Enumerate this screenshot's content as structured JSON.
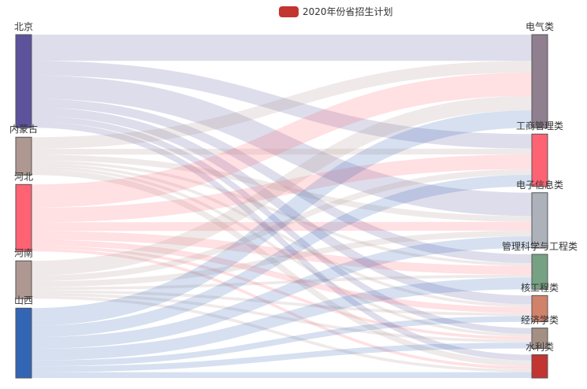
{
  "legend": {
    "label": "2020年份省招生计划",
    "color": "#c23531"
  },
  "chart_data": {
    "type": "sankey",
    "series_name": "2020年份省招生计划",
    "sources": [
      {
        "name": "北京",
        "color": "#5c539c"
      },
      {
        "name": "内蒙古",
        "color": "#ae9891"
      },
      {
        "name": "河北",
        "color": "#fe6373"
      },
      {
        "name": "河南",
        "color": "#ae9891"
      },
      {
        "name": "山西",
        "color": "#3365b5"
      }
    ],
    "targets": [
      {
        "name": "电气类",
        "color": "#907f8f"
      },
      {
        "name": "工商管理类",
        "color": "#fe6373"
      },
      {
        "name": "电子信息类",
        "color": "#adb1ba"
      },
      {
        "name": "管理科学与工程类",
        "color": "#76a183"
      },
      {
        "name": "核工程类",
        "color": "#d1826a"
      },
      {
        "name": "经济学类",
        "color": "#a38f84"
      },
      {
        "name": "水利类",
        "color": "#c23531"
      }
    ],
    "links": [
      {
        "source": "北京",
        "target": "电气类",
        "value": 9
      },
      {
        "source": "北京",
        "target": "工商管理类",
        "value": 5
      },
      {
        "source": "北京",
        "target": "电子信息类",
        "value": 8
      },
      {
        "source": "北京",
        "target": "管理科学与工程类",
        "value": 3
      },
      {
        "source": "北京",
        "target": "核工程类",
        "value": 3
      },
      {
        "source": "北京",
        "target": "经济学类",
        "value": 2
      },
      {
        "source": "北京",
        "target": "水利类",
        "value": 2
      },
      {
        "source": "内蒙古",
        "target": "电气类",
        "value": 4
      },
      {
        "source": "内蒙古",
        "target": "工商管理类",
        "value": 2
      },
      {
        "source": "内蒙古",
        "target": "电子信息类",
        "value": 2
      },
      {
        "source": "内蒙古",
        "target": "管理科学与工程类",
        "value": 1
      },
      {
        "source": "内蒙古",
        "target": "核工程类",
        "value": 1
      },
      {
        "source": "内蒙古",
        "target": "经济学类",
        "value": 1
      },
      {
        "source": "内蒙古",
        "target": "水利类",
        "value": 2
      },
      {
        "source": "河北",
        "target": "电气类",
        "value": 8
      },
      {
        "source": "河北",
        "target": "工商管理类",
        "value": 5
      },
      {
        "source": "河北",
        "target": "电子信息类",
        "value": 3
      },
      {
        "source": "河北",
        "target": "管理科学与工程类",
        "value": 3
      },
      {
        "source": "河北",
        "target": "核工程类",
        "value": 2
      },
      {
        "source": "河北",
        "target": "经济学类",
        "value": 1
      },
      {
        "source": "河北",
        "target": "水利类",
        "value": 1
      },
      {
        "source": "河南",
        "target": "电气类",
        "value": 5
      },
      {
        "source": "河南",
        "target": "工商管理类",
        "value": 2
      },
      {
        "source": "河南",
        "target": "电子信息类",
        "value": 2
      },
      {
        "source": "河南",
        "target": "管理科学与工程类",
        "value": 1
      },
      {
        "source": "河南",
        "target": "核工程类",
        "value": 1
      },
      {
        "source": "河南",
        "target": "经济学类",
        "value": 1
      },
      {
        "source": "河南",
        "target": "水利类",
        "value": 1
      },
      {
        "source": "山西",
        "target": "电气类",
        "value": 6
      },
      {
        "source": "山西",
        "target": "工商管理类",
        "value": 4
      },
      {
        "source": "山西",
        "target": "电子信息类",
        "value": 4
      },
      {
        "source": "山西",
        "target": "管理科学与工程类",
        "value": 4
      },
      {
        "source": "山西",
        "target": "核工程类",
        "value": 2
      },
      {
        "source": "山西",
        "target": "经济学类",
        "value": 2
      },
      {
        "source": "山西",
        "target": "水利类",
        "value": 2
      }
    ]
  }
}
